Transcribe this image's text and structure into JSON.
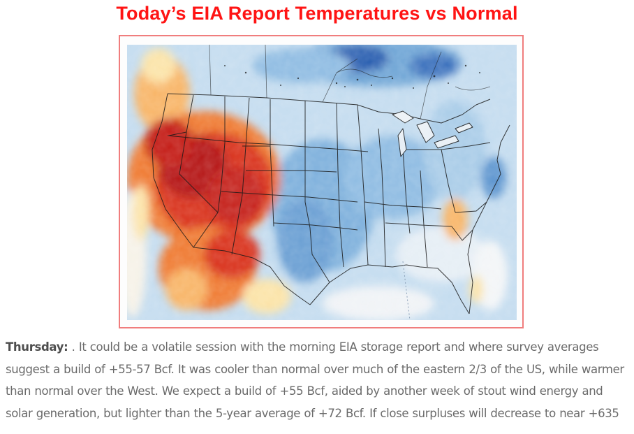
{
  "header": {
    "title": "Today’s EIA Report Temperatures vs Normal"
  },
  "map": {
    "colors": {
      "deep_red": "#b51212",
      "red": "#d9331e",
      "orange": "#ef7a33",
      "light_orange": "#f8b567",
      "pale_yellow": "#fbe3a8",
      "near_normal": "#f4f6f8",
      "pale_blue": "#d6e8f5",
      "light_blue": "#a9cce8",
      "blue": "#6fa6d6",
      "deep_blue": "#2b5fb0",
      "frame_border": "#f07d7d"
    }
  },
  "article": {
    "lead": "Thursday:",
    "body": "  . It could be a volatile session with the morning EIA storage report and where survey averages suggest a build of +55-57 Bcf. It was cooler than normal over much of the eastern 2/3 of the US, while warmer than normal over the West. We expect a build of +55 Bcf, aided by another week of stout wind energy and solar generation, but lighter than the 5-year average of +72 Bcf. If close surpluses will decrease to near +635"
  }
}
